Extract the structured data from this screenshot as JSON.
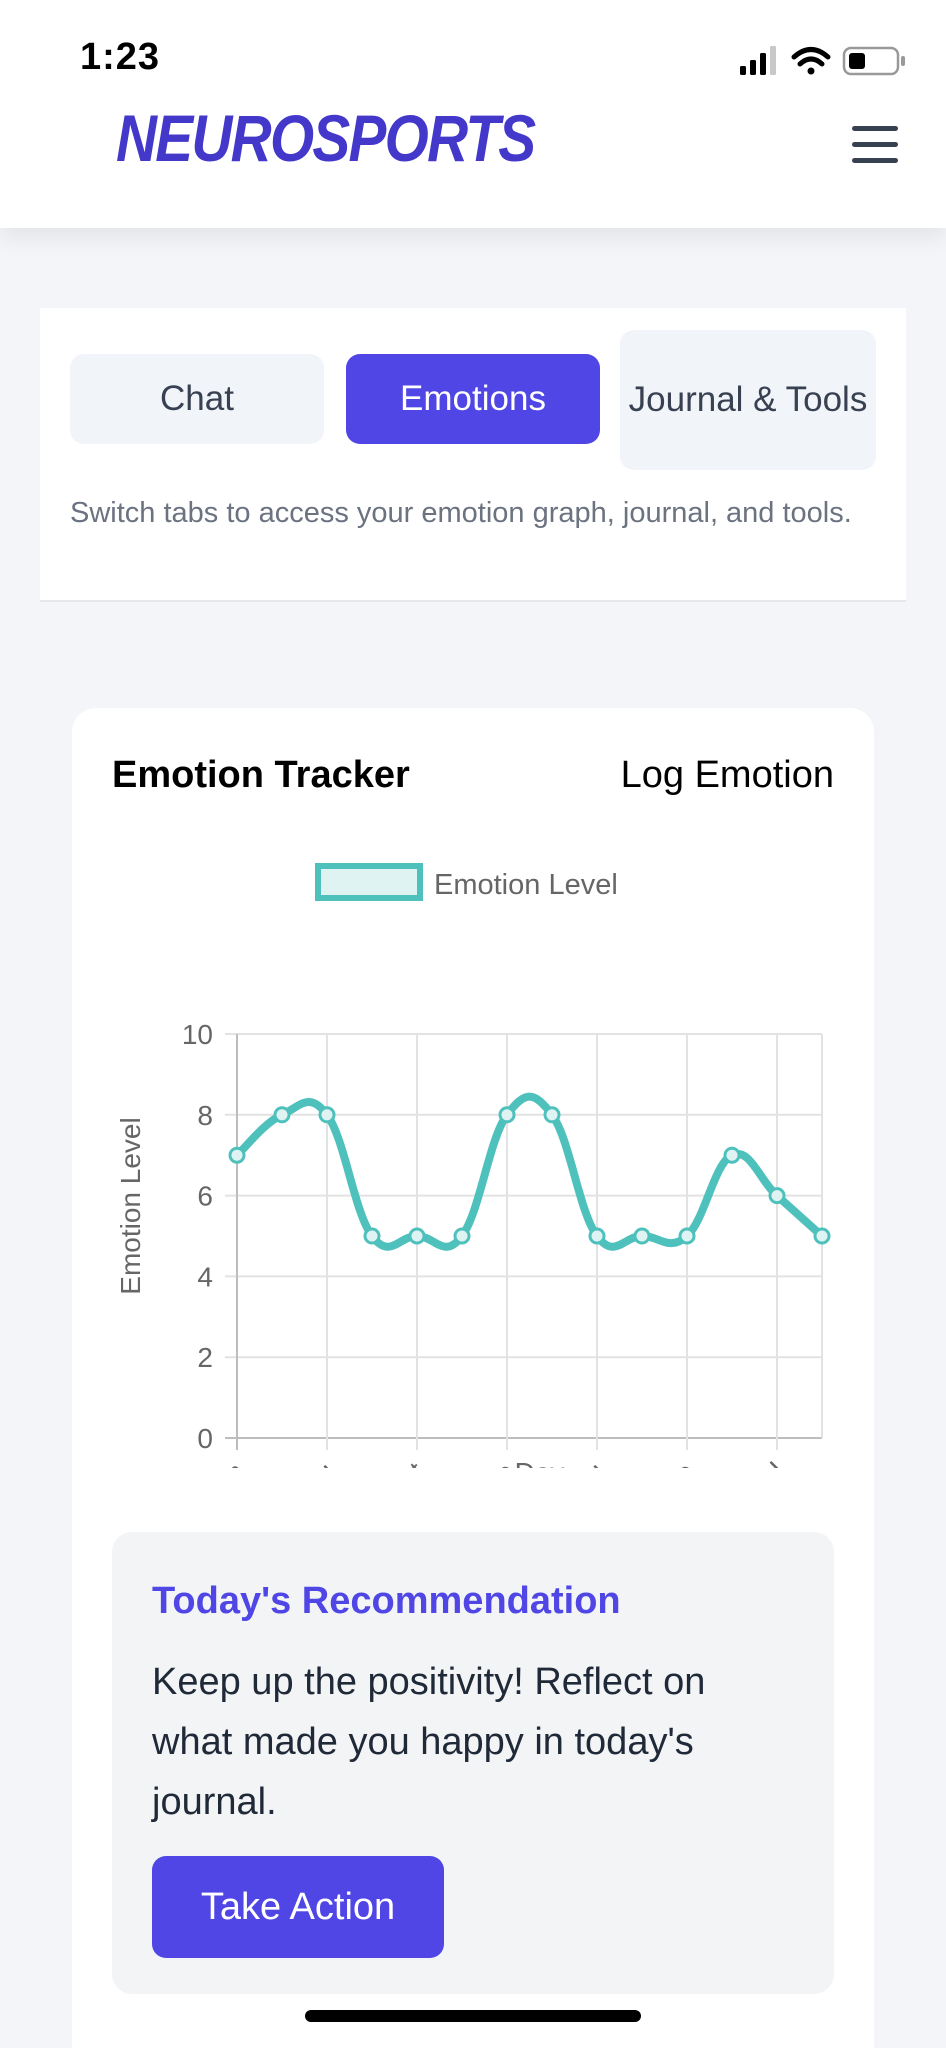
{
  "status_bar": {
    "time": "1:23"
  },
  "header": {
    "logo": "NEUROSPORTS",
    "menu_icon": "hamburger-menu-icon"
  },
  "tabs": {
    "items": [
      {
        "label": "Chat",
        "active": false
      },
      {
        "label": "Emotions",
        "active": true
      },
      {
        "label": "Journal & Tools",
        "active": false
      }
    ],
    "hint": "Switch tabs to access your emotion graph, journal, and tools."
  },
  "emotion_tracker": {
    "title": "Emotion Tracker",
    "log_label": "Log Emotion"
  },
  "chart_data": {
    "type": "line",
    "x": [
      "Mon",
      "Wed",
      "Thu",
      "Fri",
      "Sat",
      "Sun",
      "Tue",
      "Wed",
      "Thu",
      "Fri",
      "Tue",
      "Tue",
      "Wed",
      "Thu"
    ],
    "tick_labels": [
      "Mon",
      "Thu",
      "Sat",
      "Tue",
      "Thu",
      "Tue",
      "Wed"
    ],
    "series": [
      {
        "name": "Emotion Level",
        "values": [
          7,
          8,
          8,
          5,
          5,
          5,
          8,
          8,
          5,
          5,
          5,
          7,
          6,
          5
        ],
        "color": "#4fc1bd"
      }
    ],
    "xlabel": "Day",
    "ylabel": "Emotion Level",
    "ylim": [
      0,
      10
    ],
    "yticks": [
      0,
      2,
      4,
      6,
      8,
      10
    ],
    "grid": true,
    "legend": "top"
  },
  "recommendation": {
    "title": "Today's Recommendation",
    "text": "Keep up the positivity! Reflect on what made you happy in today's journal.",
    "action_label": "Take Action"
  },
  "colors": {
    "accent": "#4f46e5",
    "line": "#4fc1bd",
    "logo": "#4338ca"
  }
}
